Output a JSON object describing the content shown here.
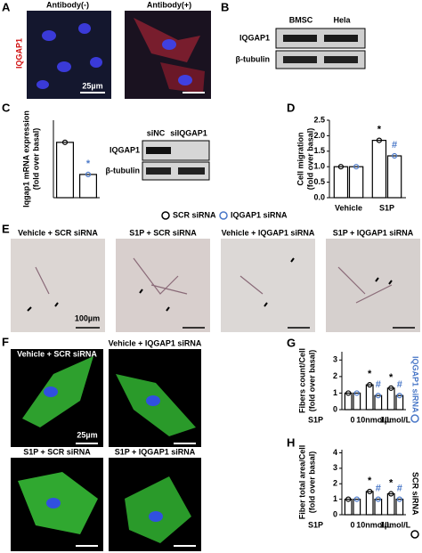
{
  "figure": {
    "a": {
      "label": "A",
      "titles": [
        "Antibody(-)",
        "Antibody(+)"
      ],
      "stain": "IQGAP1",
      "scale": "25µm"
    },
    "b": {
      "label": "B",
      "lanes": [
        "BMSC",
        "Hela"
      ],
      "rows": [
        "IQGAP1",
        "β-tubulin"
      ]
    },
    "c": {
      "label": "C",
      "lanes": [
        "siNC",
        "siIQGAP1"
      ],
      "rows": [
        "IQGAP1",
        "β-tubulin"
      ]
    },
    "d": {
      "label": "D"
    },
    "e": {
      "label": "E",
      "titles": [
        "Vehicle + SCR siRNA",
        "S1P + SCR siRNA",
        "Vehicle + IQGAP1 siRNA",
        "S1P + IQGAP1 siRNA"
      ],
      "scale": "100µm"
    },
    "f": {
      "label": "F",
      "titles": [
        "Vehicle + SCR siRNA",
        "Vehicle + IQGAP1 siRNA",
        "S1P + SCR siRNA",
        "S1P + IQGAP1 siRNA"
      ],
      "scale": "25µm"
    },
    "g": {
      "label": "G"
    },
    "h": {
      "label": "H"
    }
  },
  "chart_data": [
    {
      "type": "bar",
      "ylabel": [
        "Iqgap1 mRNA expression",
        "(fold over basal)"
      ],
      "values": [
        1.0,
        0.42
      ],
      "colors": [
        "#000000",
        "#4a78c8"
      ],
      "annotations": [
        null,
        "*"
      ],
      "ylim": [
        0,
        1.4
      ]
    },
    {
      "type": "bar",
      "ylabel": [
        "Cell migration",
        "(fold over basal)"
      ],
      "categories": [
        "Vehicle",
        "S1P"
      ],
      "series": [
        {
          "name": "SCR siRNA",
          "color": "#000000",
          "values": [
            1.0,
            1.85
          ],
          "annotations": [
            null,
            "*"
          ]
        },
        {
          "name": "IQGAP1 siRNA",
          "color": "#4a78c8",
          "values": [
            1.0,
            1.35
          ],
          "annotations": [
            null,
            "#"
          ]
        }
      ],
      "ylim": [
        0,
        2.5
      ],
      "yticks": [
        {
          "value": 0,
          "label": "0.0"
        },
        0.5,
        {
          "value": 1,
          "label": "1.0"
        },
        1.5,
        {
          "value": 2,
          "label": "2.0"
        },
        2.5
      ]
    },
    {
      "type": "bar",
      "ylabel": [
        "Fibers count/Cell",
        "(fold over basal)"
      ],
      "xlabel": "S1P",
      "categories": [
        "0",
        "10nmol/L",
        "1µmol/L"
      ],
      "series": [
        {
          "name": "SCR siRNA",
          "color": "#000000",
          "values": [
            1.0,
            1.5,
            1.3
          ],
          "annotations": [
            null,
            "*",
            "*"
          ]
        },
        {
          "name": "IQGAP1 siRNA",
          "color": "#4a78c8",
          "values": [
            1.0,
            0.85,
            0.85
          ],
          "annotations": [
            null,
            "#",
            "#"
          ]
        }
      ],
      "ylim": [
        0,
        3.5
      ],
      "yticks": [
        0,
        1,
        2,
        3
      ]
    },
    {
      "type": "bar",
      "ylabel": [
        "Fiber total area/Cell",
        "(fold over basal)"
      ],
      "xlabel": "S1P",
      "categories": [
        "0",
        "10nmol/L",
        "1µmol/L"
      ],
      "series": [
        {
          "name": "SCR siRNA",
          "color": "#000000",
          "values": [
            1.0,
            1.5,
            1.35
          ],
          "annotations": [
            null,
            "*",
            "*"
          ]
        },
        {
          "name": "IQGAP1 siRNA",
          "color": "#4a78c8",
          "values": [
            1.0,
            1.0,
            1.0
          ],
          "annotations": [
            null,
            "#",
            "#"
          ]
        }
      ],
      "ylim": [
        0,
        4.2
      ],
      "yticks": [
        0,
        1,
        2,
        3,
        4
      ]
    }
  ]
}
